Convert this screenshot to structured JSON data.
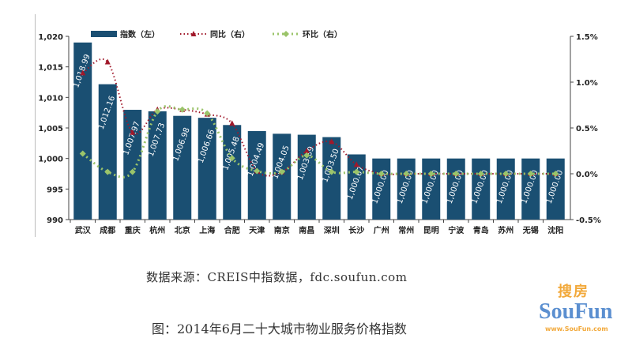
{
  "chart_data": {
    "type": "bar",
    "title": "图：2014年6月二十大城市物业服务价格指数",
    "categories": [
      "武汉",
      "成都",
      "重庆",
      "杭州",
      "北京",
      "上海",
      "合肥",
      "天津",
      "南京",
      "南昌",
      "深圳",
      "长沙",
      "广州",
      "常州",
      "昆明",
      "宁波",
      "青岛",
      "苏州",
      "无锡",
      "沈阳"
    ],
    "series": [
      {
        "name": "指数（左）",
        "type": "bar",
        "axis": "left",
        "color": "#1a4f72",
        "values": [
          1018.99,
          1012.16,
          1007.97,
          1007.73,
          1006.98,
          1006.66,
          1005.48,
          1004.49,
          1004.05,
          1003.89,
          1003.5,
          1000.67,
          1000.0,
          1000.0,
          1000.0,
          1000.0,
          1000.0,
          1000.0,
          1000.0,
          1000.0
        ],
        "labels": [
          "1,018.99",
          "1,012.16",
          "1,007.97",
          "1,007.73",
          "1,006.98",
          "1,006.66",
          "1,005.48",
          "1,004.49",
          "1,004.05",
          "1,003.89",
          "1,003.50",
          "1,000.67",
          "1,000.00",
          "1,000.00",
          "1,000.00",
          "1,000.00",
          "1,000.00",
          "1,000.00",
          "1,000.00",
          "1,000.00"
        ]
      },
      {
        "name": "同比（右）",
        "type": "line",
        "axis": "right",
        "color": "#a0182a",
        "values": [
          1.1,
          1.22,
          0.45,
          0.7,
          0.7,
          0.65,
          0.55,
          0.03,
          0.02,
          0.25,
          0.35,
          0.1,
          0,
          0,
          0,
          0,
          0,
          0,
          0,
          0
        ]
      },
      {
        "name": "环比（右）",
        "type": "line",
        "axis": "right",
        "color": "#9bc46a",
        "values": [
          0.22,
          0.02,
          0.02,
          0.68,
          0.7,
          0.66,
          0.17,
          0.03,
          0.02,
          0.2,
          0.02,
          0.02,
          0,
          0,
          0,
          0,
          0,
          0,
          0,
          0
        ]
      }
    ],
    "left_axis": {
      "ylim": [
        990,
        1020
      ],
      "ticks": [
        "990",
        "995",
        "1,000",
        "1,005",
        "1,010",
        "1,015",
        "1,020"
      ]
    },
    "right_axis": {
      "ylim": [
        -0.5,
        1.5
      ],
      "ticks": [
        "-0.5%",
        "0.0%",
        "0.5%",
        "1.0%",
        "1.5%"
      ]
    },
    "legend": "top",
    "grid": false
  },
  "source_note": "数据来源：CREIS中指数据，fdc.soufun.com",
  "caption": "图：2014年6月二十大城市物业服务价格指数",
  "watermark": {
    "cn": "搜房",
    "en": "SouFun",
    "url": "www.SouFun.com"
  }
}
